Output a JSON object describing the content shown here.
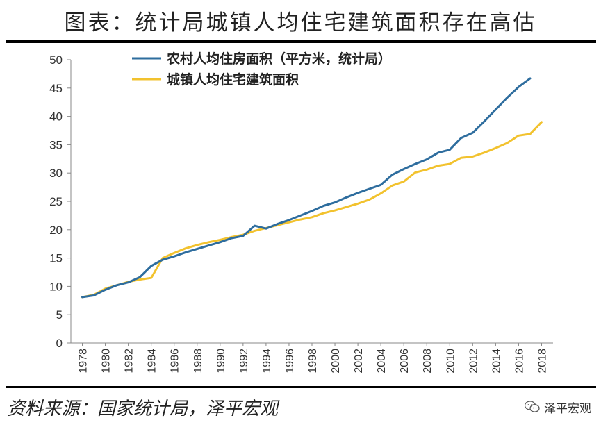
{
  "title": "图表：统计局城镇人均住宅建筑面积存在高估",
  "source": "资料来源：国家统计局，泽平宏观",
  "brand": "泽平宏观",
  "brand_icon": "wechat-icon",
  "chart_data": {
    "type": "line",
    "ylim": [
      0,
      50
    ],
    "yticks": [
      0,
      5,
      10,
      15,
      20,
      25,
      30,
      35,
      40,
      45,
      50
    ],
    "xlim": [
      1977,
      2019
    ],
    "xticks": [
      1978,
      1980,
      1982,
      1984,
      1986,
      1988,
      1990,
      1992,
      1994,
      1996,
      1998,
      2000,
      2002,
      2004,
      2006,
      2008,
      2010,
      2012,
      2014,
      2016,
      2018
    ],
    "legend_position": "top-left",
    "grid": false,
    "series": [
      {
        "name": "农村人均住房面积（平方米，统计局）",
        "color": "#2e6d9e",
        "x": [
          1978,
          1979,
          1980,
          1981,
          1982,
          1983,
          1984,
          1985,
          1986,
          1987,
          1988,
          1989,
          1990,
          1991,
          1992,
          1993,
          1994,
          1995,
          1996,
          1997,
          1998,
          1999,
          2000,
          2001,
          2002,
          2003,
          2004,
          2005,
          2006,
          2007,
          2008,
          2009,
          2010,
          2011,
          2012,
          2013,
          2014,
          2015,
          2016,
          2017
        ],
        "values": [
          8.1,
          8.4,
          9.4,
          10.2,
          10.7,
          11.6,
          13.6,
          14.7,
          15.3,
          16.0,
          16.6,
          17.2,
          17.8,
          18.5,
          18.9,
          20.7,
          20.2,
          21.0,
          21.7,
          22.5,
          23.3,
          24.2,
          24.8,
          25.7,
          26.5,
          27.2,
          27.9,
          29.7,
          30.7,
          31.6,
          32.4,
          33.6,
          34.1,
          36.2,
          37.1,
          39.1,
          41.2,
          43.3,
          45.2,
          46.7
        ]
      },
      {
        "name": "城镇人均住宅建筑面积",
        "color": "#f2c22e",
        "x": [
          1978,
          1979,
          1980,
          1981,
          1982,
          1983,
          1984,
          1985,
          1986,
          1987,
          1988,
          1989,
          1990,
          1991,
          1992,
          1993,
          1994,
          1995,
          1996,
          1997,
          1998,
          1999,
          2000,
          2001,
          2002,
          2003,
          2004,
          2005,
          2006,
          2007,
          2008,
          2009,
          2010,
          2011,
          2012,
          2013,
          2014,
          2015,
          2016,
          2017,
          2018
        ],
        "values": [
          8.1,
          8.5,
          9.6,
          10.2,
          10.8,
          11.2,
          11.5,
          15.0,
          15.9,
          16.7,
          17.3,
          17.8,
          18.2,
          18.7,
          19.1,
          19.8,
          20.3,
          20.8,
          21.3,
          21.8,
          22.2,
          22.9,
          23.4,
          24.0,
          24.6,
          25.3,
          26.4,
          27.8,
          28.5,
          30.1,
          30.6,
          31.3,
          31.6,
          32.7,
          32.9,
          33.6,
          34.4,
          35.3,
          36.6,
          36.9,
          39.0
        ]
      }
    ]
  }
}
